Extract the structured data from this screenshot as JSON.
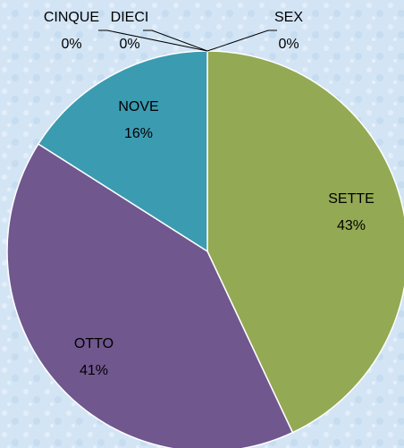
{
  "chart_data": {
    "type": "pie",
    "categories": [
      "SEX",
      "SETTE",
      "OTTO",
      "NOVE",
      "CINQUE",
      "DIECI"
    ],
    "values": [
      0,
      43,
      41,
      16,
      0,
      0
    ],
    "value_labels": [
      "0%",
      "43%",
      "41%",
      "16%",
      "0%",
      "0%"
    ],
    "colors": [
      "#c0504d",
      "#93a953",
      "#70578e",
      "#3b9bb1",
      "#f79646",
      "#4bacc6"
    ]
  }
}
